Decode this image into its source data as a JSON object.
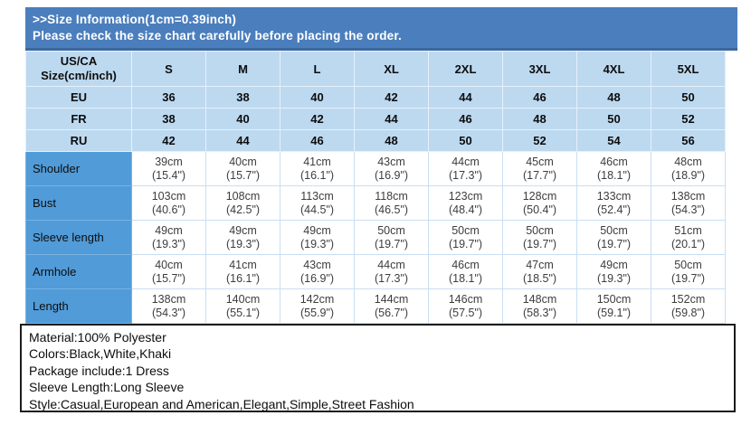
{
  "banner": {
    "line1": ">>Size Information(1cm=0.39inch)",
    "line2": "Please check the size chart carefully before placing the order."
  },
  "table": {
    "corner_header_line1": "US/CA",
    "corner_header_line2": "Size(cm/inch)",
    "size_columns": [
      "S",
      "M",
      "L",
      "XL",
      "2XL",
      "3XL",
      "4XL",
      "5XL"
    ],
    "region_rows": [
      {
        "label": "EU",
        "values": [
          "36",
          "38",
          "40",
          "42",
          "44",
          "46",
          "48",
          "50"
        ]
      },
      {
        "label": "FR",
        "values": [
          "38",
          "40",
          "42",
          "44",
          "46",
          "48",
          "50",
          "52"
        ]
      },
      {
        "label": "RU",
        "values": [
          "42",
          "44",
          "46",
          "48",
          "50",
          "52",
          "54",
          "56"
        ]
      }
    ],
    "measurement_rows": [
      {
        "label": "Shoulder",
        "cells": [
          {
            "cm": "39cm",
            "inch": "(15.4\")"
          },
          {
            "cm": "40cm",
            "inch": "(15.7\")"
          },
          {
            "cm": "41cm",
            "inch": "(16.1\")"
          },
          {
            "cm": "43cm",
            "inch": "(16.9\")"
          },
          {
            "cm": "44cm",
            "inch": "(17.3\")"
          },
          {
            "cm": "45cm",
            "inch": "(17.7\")"
          },
          {
            "cm": "46cm",
            "inch": "(18.1\")"
          },
          {
            "cm": "48cm",
            "inch": "(18.9\")"
          }
        ]
      },
      {
        "label": "Bust",
        "cells": [
          {
            "cm": "103cm",
            "inch": "(40.6\")"
          },
          {
            "cm": "108cm",
            "inch": "(42.5\")"
          },
          {
            "cm": "113cm",
            "inch": "(44.5\")"
          },
          {
            "cm": "118cm",
            "inch": "(46.5\")"
          },
          {
            "cm": "123cm",
            "inch": "(48.4\")"
          },
          {
            "cm": "128cm",
            "inch": "(50.4\")"
          },
          {
            "cm": "133cm",
            "inch": "(52.4\")"
          },
          {
            "cm": "138cm",
            "inch": "(54.3\")"
          }
        ]
      },
      {
        "label": "Sleeve length",
        "cells": [
          {
            "cm": "49cm",
            "inch": "(19.3\")"
          },
          {
            "cm": "49cm",
            "inch": "(19.3\")"
          },
          {
            "cm": "49cm",
            "inch": "(19.3\")"
          },
          {
            "cm": "50cm",
            "inch": "(19.7\")"
          },
          {
            "cm": "50cm",
            "inch": "(19.7\")"
          },
          {
            "cm": "50cm",
            "inch": "(19.7\")"
          },
          {
            "cm": "50cm",
            "inch": "(19.7\")"
          },
          {
            "cm": "51cm",
            "inch": "(20.1\")"
          }
        ]
      },
      {
        "label": "Armhole",
        "cells": [
          {
            "cm": "40cm",
            "inch": "(15.7\")"
          },
          {
            "cm": "41cm",
            "inch": "(16.1\")"
          },
          {
            "cm": "43cm",
            "inch": "(16.9\")"
          },
          {
            "cm": "44cm",
            "inch": "(17.3\")"
          },
          {
            "cm": "46cm",
            "inch": "(18.1\")"
          },
          {
            "cm": "47cm",
            "inch": "(18.5\")"
          },
          {
            "cm": "49cm",
            "inch": "(19.3\")"
          },
          {
            "cm": "50cm",
            "inch": "(19.7\")"
          }
        ]
      },
      {
        "label": "Length",
        "cells": [
          {
            "cm": "138cm",
            "inch": "(54.3\")"
          },
          {
            "cm": "140cm",
            "inch": "(55.1\")"
          },
          {
            "cm": "142cm",
            "inch": "(55.9\")"
          },
          {
            "cm": "144cm",
            "inch": "(56.7\")"
          },
          {
            "cm": "146cm",
            "inch": "(57.5\")"
          },
          {
            "cm": "148cm",
            "inch": "(58.3\")"
          },
          {
            "cm": "150cm",
            "inch": "(59.1\")"
          },
          {
            "cm": "152cm",
            "inch": "(59.8\")"
          }
        ]
      }
    ]
  },
  "product_info": {
    "lines": [
      "Material:100% Polyester",
      "Colors:Black,White,Khaki",
      "Package include:1 Dress",
      "Sleeve Length:Long Sleeve",
      "Style:Casual,European and American,Elegant,Simple,Street Fashion"
    ]
  },
  "colors": {
    "banner_blue": "#4b7ebd",
    "banner_border": "#3a679f",
    "light_row_blue": "#bdd9f0",
    "label_cell_blue": "#519bd8",
    "body_grid_line": "#c9dff2"
  }
}
